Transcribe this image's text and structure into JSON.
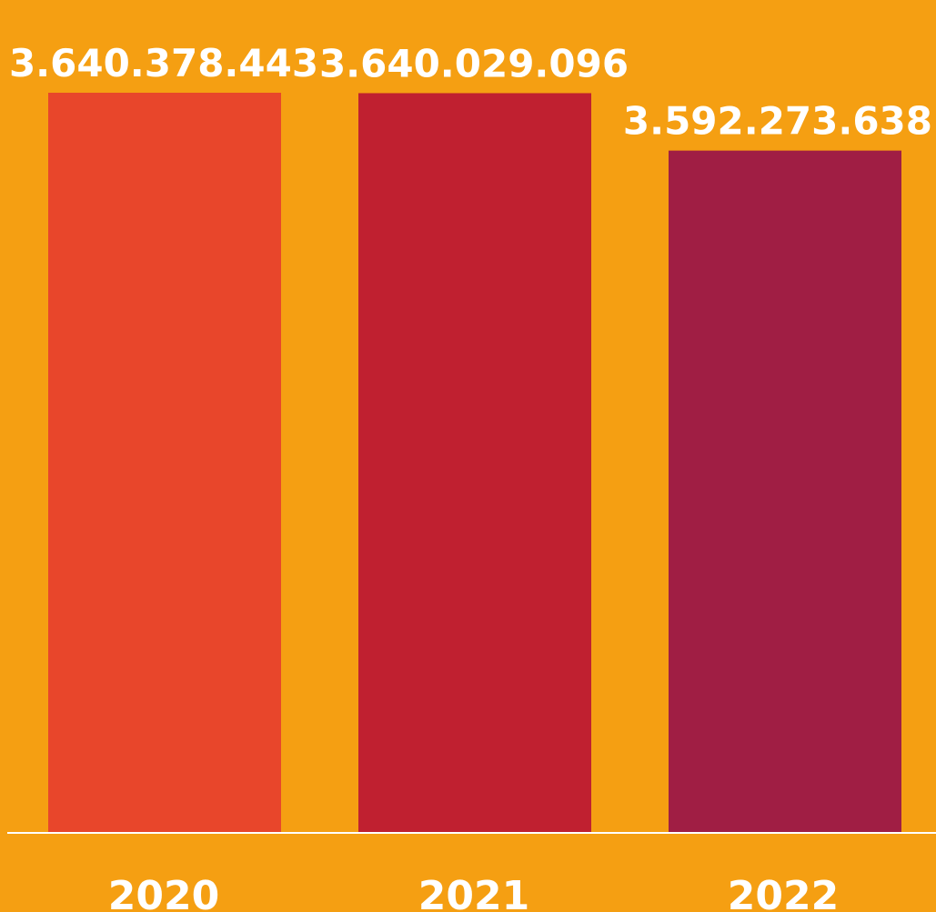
{
  "chart_data": {
    "type": "bar",
    "categories": [
      "2020",
      "2021",
      "2022"
    ],
    "values": [
      3640378443,
      3640029096,
      3592273638
    ],
    "value_labels": [
      "3.640.378.443",
      "3.640.029.096",
      "3.592.273.638"
    ],
    "title": "",
    "xlabel": "",
    "ylabel": "",
    "grid": false,
    "legend": "none",
    "bar_colors": [
      "#E8462B",
      "#C02030",
      "#A01E44"
    ],
    "background_color": "#F59F12",
    "axis_color": "#FFFFFF",
    "label_color": "#FFFFFF"
  }
}
